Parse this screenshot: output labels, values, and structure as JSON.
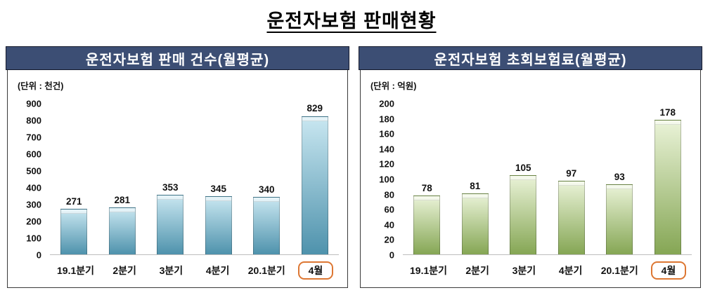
{
  "page_title": "운전자보험 판매현황",
  "chart_data": [
    {
      "type": "bar",
      "title": "운전자보험 판매 건수(월평균)",
      "unit_label": "(단위 : 천건)",
      "categories": [
        "19.1분기",
        "2분기",
        "3분기",
        "4분기",
        "20.1분기",
        "4월"
      ],
      "values": [
        271,
        281,
        353,
        345,
        340,
        829
      ],
      "ylim": [
        0,
        900
      ],
      "ytick_step": 100,
      "grid": false,
      "legend": "none",
      "highlight_category_index": 5,
      "highlight_border_color": "#dd7733",
      "bar_color_top": "#c9e7f1",
      "bar_color_bottom": "#4e92ac",
      "header_bg": "#3c4e74"
    },
    {
      "type": "bar",
      "title": "운전자보험 초회보험료(월평균)",
      "unit_label": "(단위 : 억원)",
      "categories": [
        "19.1분기",
        "2분기",
        "3분기",
        "4분기",
        "20.1분기",
        "4월"
      ],
      "values": [
        78,
        81,
        105,
        97,
        93,
        178
      ],
      "ylim": [
        0,
        200
      ],
      "ytick_step": 20,
      "grid": false,
      "legend": "none",
      "highlight_category_index": 5,
      "highlight_border_color": "#dd7733",
      "bar_color_top": "#eaf3d8",
      "bar_color_bottom": "#85a654",
      "header_bg": "#3c4e74"
    }
  ]
}
